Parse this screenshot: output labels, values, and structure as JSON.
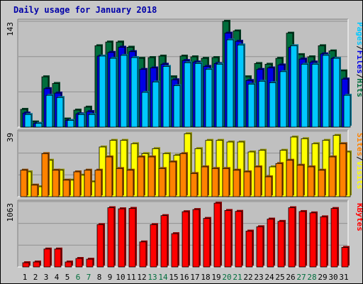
{
  "title": "Daily usage for January 2018",
  "colors": {
    "hits": "#006e3c",
    "files": "#0000e6",
    "pages": "#00c8ff",
    "visits": "#ffff00",
    "sites": "#ff8200",
    "kbytes": "#ff0000",
    "weekend_day": "#006e3c",
    "weekday_day": "#000000",
    "title": "#0000a8"
  },
  "chart_data": [
    {
      "type": "bar",
      "categories": [
        "1",
        "2",
        "3",
        "4",
        "5",
        "6",
        "7",
        "8",
        "9",
        "10",
        "11",
        "12",
        "13",
        "14",
        "15",
        "16",
        "17",
        "18",
        "19",
        "20",
        "21",
        "22",
        "23",
        "24",
        "25",
        "26",
        "27",
        "28",
        "29",
        "30",
        "31"
      ],
      "weekend_days": [
        "6",
        "7",
        "13",
        "14",
        "20",
        "21",
        "27",
        "28"
      ],
      "ylabel_parts": [
        "Pages",
        "/",
        "Files",
        "/",
        "Hits"
      ],
      "ytick_label": "143",
      "ylim": [
        0,
        143
      ],
      "series": [
        {
          "name": "Hits",
          "values": [
            24,
            7,
            68,
            59,
            11,
            23,
            27,
            110,
            115,
            115,
            108,
            93,
            94,
            96,
            68,
            96,
            95,
            93,
            94,
            143,
            130,
            68,
            86,
            85,
            93,
            127,
            98,
            95,
            110,
            103,
            76
          ]
        },
        {
          "name": "Files",
          "values": [
            19,
            5,
            52,
            46,
            9,
            18,
            21,
            96,
            101,
            108,
            102,
            78,
            80,
            85,
            64,
            90,
            88,
            82,
            86,
            127,
            116,
            63,
            78,
            80,
            84,
            108,
            92,
            88,
            99,
            93,
            65
          ]
        },
        {
          "name": "Pages",
          "values": [
            17,
            5,
            43,
            40,
            9,
            17,
            17,
            96,
            93,
            97,
            94,
            47,
            61,
            82,
            56,
            87,
            86,
            78,
            85,
            118,
            111,
            58,
            62,
            60,
            75,
            110,
            85,
            85,
            97,
            93,
            43
          ]
        }
      ]
    },
    {
      "type": "bar",
      "categories": [
        "1",
        "2",
        "3",
        "4",
        "5",
        "6",
        "7",
        "8",
        "9",
        "10",
        "11",
        "12",
        "13",
        "14",
        "15",
        "16",
        "17",
        "18",
        "19",
        "20",
        "21",
        "22",
        "23",
        "24",
        "25",
        "26",
        "27",
        "28",
        "29",
        "30",
        "31"
      ],
      "ylabel_parts": [
        "Sites",
        "/",
        "Visits"
      ],
      "ytick_label": "39",
      "ylim": [
        0,
        39
      ],
      "series": [
        {
          "name": "Visits",
          "values": [
            15,
            6,
            22,
            16,
            10,
            13,
            9,
            30,
            34,
            34,
            32,
            26,
            29,
            26,
            25,
            38,
            29,
            34,
            34,
            33,
            33,
            27,
            28,
            18,
            28,
            36,
            35,
            32,
            34,
            37,
            27
          ]
        },
        {
          "name": "Sites",
          "values": [
            16,
            7,
            26,
            16,
            10,
            15,
            16,
            16,
            24,
            17,
            16,
            24,
            24,
            17,
            21,
            26,
            14,
            18,
            17,
            17,
            16,
            15,
            18,
            12,
            20,
            22,
            19,
            18,
            16,
            24,
            32
          ]
        }
      ]
    },
    {
      "type": "bar",
      "categories": [
        "1",
        "2",
        "3",
        "4",
        "5",
        "6",
        "7",
        "8",
        "9",
        "10",
        "11",
        "12",
        "13",
        "14",
        "15",
        "16",
        "17",
        "18",
        "19",
        "20",
        "21",
        "22",
        "23",
        "24",
        "25",
        "26",
        "27",
        "28",
        "29",
        "30",
        "31"
      ],
      "ylabel_parts": [
        "KBytes"
      ],
      "ytick_label": "1063",
      "ylim": [
        0,
        1063
      ],
      "series": [
        {
          "name": "KBytes",
          "values": [
            70,
            82,
            295,
            295,
            82,
            140,
            128,
            697,
            975,
            957,
            964,
            412,
            697,
            845,
            548,
            909,
            945,
            799,
            1050,
            930,
            915,
            590,
            662,
            788,
            750,
            975,
            912,
            890,
            825,
            962,
            322
          ]
        }
      ]
    }
  ]
}
